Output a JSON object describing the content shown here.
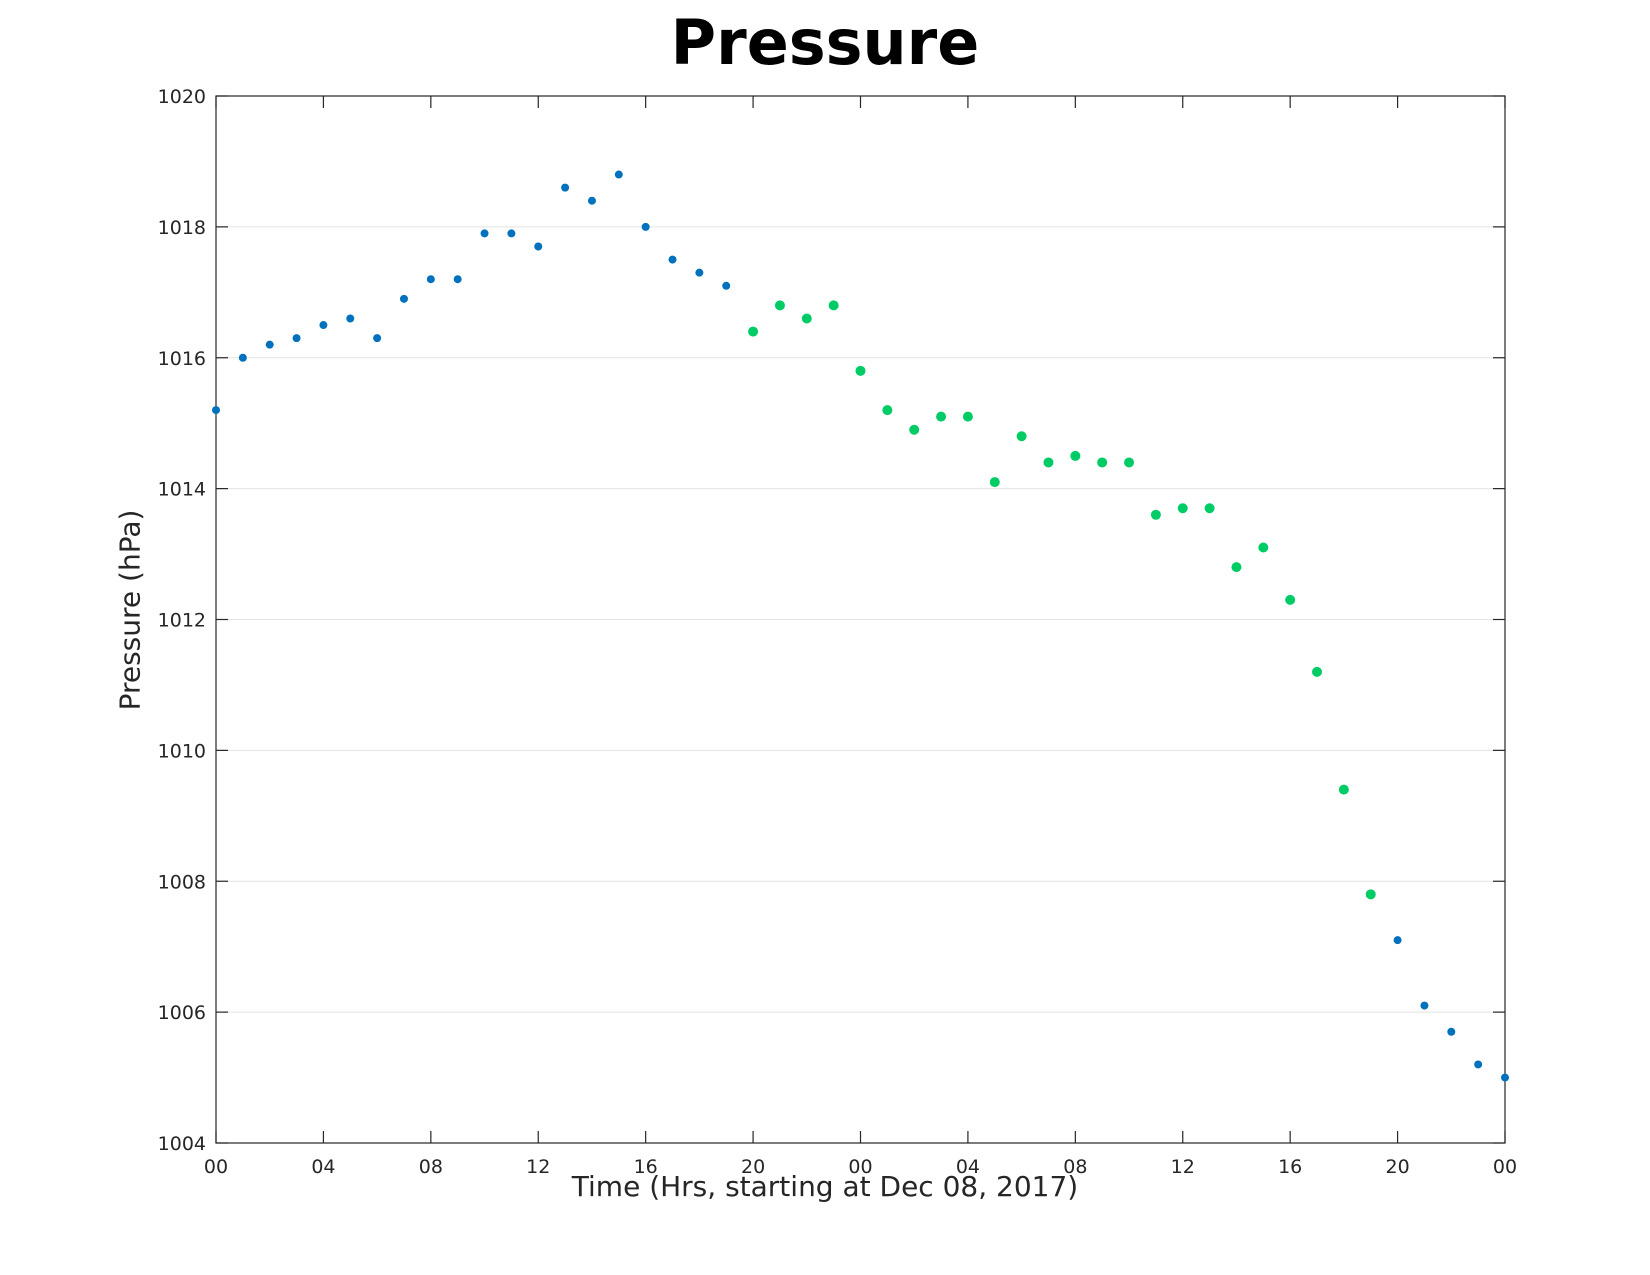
{
  "chart_data": {
    "type": "scatter",
    "title": "Pressure",
    "xlabel": "Time (Hrs, starting at Dec 08, 2017)",
    "ylabel": "Pressure (hPa)",
    "xlim": [
      0,
      48
    ],
    "ylim": [
      1004,
      1020
    ],
    "x_ticks": [
      0,
      4,
      8,
      12,
      16,
      20,
      24,
      28,
      32,
      36,
      40,
      44,
      48
    ],
    "x_tick_labels": [
      "00",
      "04",
      "08",
      "12",
      "16",
      "20",
      "00",
      "04",
      "08",
      "12",
      "16",
      "20",
      "00"
    ],
    "y_ticks": [
      1004,
      1006,
      1008,
      1010,
      1012,
      1014,
      1016,
      1018,
      1020
    ],
    "y_tick_labels": [
      "1004",
      "1006",
      "1008",
      "1010",
      "1012",
      "1014",
      "1016",
      "1018",
      "1020"
    ],
    "grid": "horizontal",
    "series": [
      {
        "color": "#0072BD",
        "points": [
          [
            0,
            1015.2
          ],
          [
            1,
            1016.0
          ],
          [
            2,
            1016.2
          ],
          [
            3,
            1016.3
          ],
          [
            4,
            1016.5
          ],
          [
            5,
            1016.6
          ],
          [
            6,
            1016.3
          ],
          [
            7,
            1016.9
          ],
          [
            8,
            1017.2
          ],
          [
            9,
            1017.2
          ],
          [
            10,
            1017.9
          ],
          [
            11,
            1017.9
          ],
          [
            12,
            1017.7
          ],
          [
            13,
            1018.6
          ],
          [
            14,
            1018.4
          ],
          [
            15,
            1018.8
          ],
          [
            16,
            1018.0
          ],
          [
            17,
            1017.5
          ],
          [
            18,
            1017.3
          ],
          [
            19,
            1017.1
          ],
          [
            44,
            1007.1
          ],
          [
            45,
            1006.1
          ],
          [
            46,
            1005.7
          ],
          [
            47,
            1005.2
          ],
          [
            48,
            1005.0
          ]
        ]
      },
      {
        "color": "#00CC66",
        "points": [
          [
            20,
            1016.4
          ],
          [
            21,
            1016.8
          ],
          [
            22,
            1016.6
          ],
          [
            23,
            1016.8
          ],
          [
            24,
            1015.8
          ],
          [
            25,
            1015.2
          ],
          [
            26,
            1014.9
          ],
          [
            27,
            1015.1
          ],
          [
            28,
            1015.1
          ],
          [
            29,
            1014.1
          ],
          [
            30,
            1014.8
          ],
          [
            31,
            1014.4
          ],
          [
            32,
            1014.5
          ],
          [
            33,
            1014.4
          ],
          [
            34,
            1014.4
          ],
          [
            35,
            1013.6
          ],
          [
            36,
            1013.7
          ],
          [
            37,
            1013.7
          ],
          [
            38,
            1012.8
          ],
          [
            39,
            1013.1
          ],
          [
            40,
            1012.3
          ],
          [
            41,
            1011.2
          ],
          [
            42,
            1009.4
          ],
          [
            43,
            1007.8
          ]
        ]
      }
    ]
  }
}
